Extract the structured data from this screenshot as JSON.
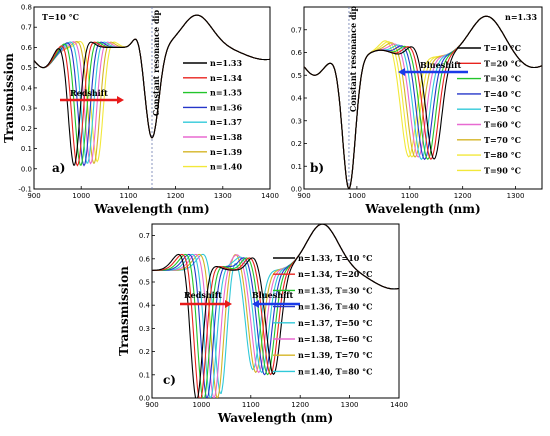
{
  "chart_data": [
    {
      "id": "a",
      "type": "line",
      "panel_label": "a)",
      "condition_label": "T=10 °C",
      "xlabel": "Wavelength (nm)",
      "ylabel": "Transmission",
      "xlim": [
        900,
        1400
      ],
      "ylim": [
        -0.1,
        0.8
      ],
      "xticks": [
        900,
        1000,
        1100,
        1200,
        1300,
        1400
      ],
      "xtick_labels": [
        "900",
        "1000",
        "1100",
        "1200",
        "1300",
        "1400"
      ],
      "yticks": [
        -0.1,
        0.0,
        0.1,
        0.2,
        0.3,
        0.4,
        0.5,
        0.6,
        0.7,
        0.8
      ],
      "ytick_labels": [
        "-0.1",
        "0.0",
        "0.1",
        "0.2",
        "0.3",
        "0.4",
        "0.5",
        "0.6",
        "0.7",
        "0.8"
      ],
      "legend_position": "right",
      "annotations": [
        {
          "text": "Redshift",
          "arrow": "right",
          "color": "#e81a1a"
        },
        {
          "text": "Constant resonance dip",
          "vertical_line_x": 1150
        }
      ],
      "series": [
        {
          "name": "n=1.33",
          "color": "#000000",
          "dip1": [
            985,
            0.01
          ],
          "dip2": [
            1150,
            0.13
          ]
        },
        {
          "name": "n=1.34",
          "color": "#e8231e",
          "dip1": [
            992,
            0.01
          ],
          "dip2": [
            1150,
            0.13
          ]
        },
        {
          "name": "n=1.35",
          "color": "#22c52b",
          "dip1": [
            999,
            0.01
          ],
          "dip2": [
            1150,
            0.13
          ]
        },
        {
          "name": "n=1.36",
          "color": "#2536c9",
          "dip1": [
            1006,
            0.01
          ],
          "dip2": [
            1150,
            0.13
          ]
        },
        {
          "name": "n=1.37",
          "color": "#30c9d9",
          "dip1": [
            1013,
            0.02
          ],
          "dip2": [
            1150,
            0.13
          ]
        },
        {
          "name": "n=1.38",
          "color": "#e86ad1",
          "dip1": [
            1020,
            0.02
          ],
          "dip2": [
            1150,
            0.13
          ]
        },
        {
          "name": "n=1.39",
          "color": "#d4b426",
          "dip1": [
            1027,
            0.02
          ],
          "dip2": [
            1150,
            0.13
          ]
        },
        {
          "name": "n=1.40",
          "color": "#f2e83a",
          "dip1": [
            1034,
            0.03
          ],
          "dip2": [
            1150,
            0.13
          ]
        }
      ]
    },
    {
      "id": "b",
      "type": "line",
      "panel_label": "b)",
      "condition_label": "n=1.33",
      "xlabel": "Wavelength (nm)",
      "ylabel": "",
      "xlim": [
        900,
        1350
      ],
      "ylim": [
        0.0,
        0.8
      ],
      "xticks": [
        900,
        1000,
        1100,
        1200,
        1300
      ],
      "xtick_labels": [
        "900",
        "1000",
        "1100",
        "1200",
        "1300"
      ],
      "yticks": [
        0.0,
        0.1,
        0.2,
        0.3,
        0.4,
        0.5,
        0.6,
        0.7
      ],
      "ytick_labels": [
        "0.0",
        "0.1",
        "0.2",
        "0.3",
        "0.4",
        "0.5",
        "0.6",
        "0.7"
      ],
      "legend_position": "right",
      "annotations": [
        {
          "text": "Blueshift",
          "arrow": "left",
          "color": "#1a3be8"
        },
        {
          "text": "Constant resonance dip",
          "vertical_line_x": 985
        }
      ],
      "series": [
        {
          "name": "T=10 °C",
          "color": "#000000",
          "dip1": [
            985,
            0.0
          ],
          "dip2": [
            1146,
            0.13
          ]
        },
        {
          "name": "T=20 °C",
          "color": "#e8231e",
          "dip1": [
            985,
            0.0
          ],
          "dip2": [
            1140,
            0.13
          ]
        },
        {
          "name": "T=30 °C",
          "color": "#22c52b",
          "dip1": [
            985,
            0.0
          ],
          "dip2": [
            1134,
            0.13
          ]
        },
        {
          "name": "T=40 °C",
          "color": "#2536c9",
          "dip1": [
            985,
            0.0
          ],
          "dip2": [
            1128,
            0.13
          ]
        },
        {
          "name": "T=50 °C",
          "color": "#30c9d9",
          "dip1": [
            985,
            0.0
          ],
          "dip2": [
            1122,
            0.13
          ]
        },
        {
          "name": "T=60 °C",
          "color": "#e86ad1",
          "dip1": [
            985,
            0.0
          ],
          "dip2": [
            1116,
            0.14
          ]
        },
        {
          "name": "T=70 °C",
          "color": "#d4b426",
          "dip1": [
            985,
            0.0
          ],
          "dip2": [
            1110,
            0.14
          ]
        },
        {
          "name": "T=80 °C",
          "color": "#f2e83a",
          "dip1": [
            985,
            0.0
          ],
          "dip2": [
            1104,
            0.14
          ]
        },
        {
          "name": "T=90 °C",
          "color": "#f2e83a",
          "dip1": [
            985,
            0.0
          ],
          "dip2": [
            1098,
            0.14
          ]
        }
      ]
    },
    {
      "id": "c",
      "type": "line",
      "panel_label": "c)",
      "condition_label": "",
      "xlabel": "Wavelength (nm)",
      "ylabel": "Transmission",
      "xlim": [
        900,
        1400
      ],
      "ylim": [
        0.0,
        0.75
      ],
      "xticks": [
        900,
        1000,
        1100,
        1200,
        1300,
        1400
      ],
      "xtick_labels": [
        "900",
        "1000",
        "1100",
        "1200",
        "1300",
        "1400"
      ],
      "yticks": [
        0.0,
        0.1,
        0.2,
        0.3,
        0.4,
        0.5,
        0.6,
        0.7
      ],
      "ytick_labels": [
        "0.0",
        "0.1",
        "0.2",
        "0.3",
        "0.4",
        "0.5",
        "0.6",
        "0.7"
      ],
      "legend_position": "right",
      "annotations": [
        {
          "text": "Redshift",
          "arrow": "right",
          "color": "#e81a1a"
        },
        {
          "text": "Blueshift",
          "arrow": "left",
          "color": "#1a3be8"
        }
      ],
      "series": [
        {
          "name": "n=1.33, T=10 °C",
          "color": "#000000",
          "dip1": [
            990,
            0.0
          ],
          "dip2": [
            1146,
            0.13
          ]
        },
        {
          "name": "n=1.34, T=20 °C",
          "color": "#e8231e",
          "dip1": [
            997,
            0.0
          ],
          "dip2": [
            1140,
            0.13
          ]
        },
        {
          "name": "n=1.35, T=30 °C",
          "color": "#22c52b",
          "dip1": [
            1004,
            0.0
          ],
          "dip2": [
            1134,
            0.13
          ]
        },
        {
          "name": "n=1.36, T=40 °C",
          "color": "#2536c9",
          "dip1": [
            1011,
            0.01
          ],
          "dip2": [
            1128,
            0.13
          ]
        },
        {
          "name": "n=1.37, T=50 °C",
          "color": "#30c9d9",
          "dip1": [
            1018,
            0.01
          ],
          "dip2": [
            1122,
            0.14
          ]
        },
        {
          "name": "n=1.38, T=60 °C",
          "color": "#e86ad1",
          "dip1": [
            1025,
            0.01
          ],
          "dip2": [
            1116,
            0.14
          ]
        },
        {
          "name": "n=1.39, T=70 °C",
          "color": "#d4b426",
          "dip1": [
            1032,
            0.01
          ],
          "dip2": [
            1110,
            0.14
          ]
        },
        {
          "name": "n=1.40, T=80 °C",
          "color": "#30c9d9",
          "dip1": [
            1039,
            0.02
          ],
          "dip2": [
            1104,
            0.15
          ]
        }
      ]
    }
  ]
}
